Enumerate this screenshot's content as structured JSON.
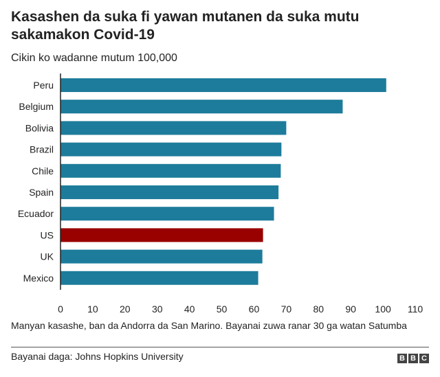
{
  "header": {
    "title": "Kasashen da suka fi yawan mutanen da suka mutu sakamakon Covid-19",
    "subtitle": "Cikin ko wadanne mutum 100,000"
  },
  "footer": {
    "note": "Manyan kasashe, ban da Andorra da San Marino. Bayanai zuwa ranar 30 ga watan Satumba",
    "source": "Bayanai daga: Johns Hopkins University",
    "logo_letters": [
      "B",
      "B",
      "C"
    ]
  },
  "colors": {
    "bar": "#1d7c9b",
    "highlight": "#990000",
    "axis": "#222222"
  },
  "chart_data": {
    "type": "bar",
    "orientation": "horizontal",
    "categories": [
      "Peru",
      "Belgium",
      "Bolivia",
      "Brazil",
      "Chile",
      "Spain",
      "Ecuador",
      "US",
      "UK",
      "Mexico"
    ],
    "values": [
      101,
      87.5,
      70,
      68.5,
      68.3,
      67.6,
      66.2,
      62.8,
      62.6,
      61.3
    ],
    "highlight": "US",
    "xticks": [
      0,
      10,
      20,
      30,
      40,
      50,
      60,
      70,
      80,
      90,
      100,
      110
    ],
    "xlim": [
      0,
      110
    ],
    "grid": false
  }
}
